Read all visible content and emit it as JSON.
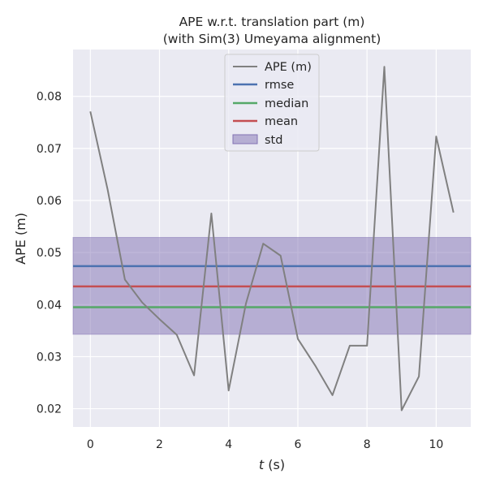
{
  "chart_data": {
    "type": "line",
    "title": "APE w.r.t. translation part (m)",
    "subtitle": "(with Sim(3) Umeyama alignment)",
    "xlabel_var": "t",
    "xlabel_unit": " (s)",
    "ylabel": "APE (m)",
    "xlim": [
      -0.5,
      11.0
    ],
    "ylim": [
      0.0165,
      0.089
    ],
    "xticks": [
      0,
      2,
      4,
      6,
      8,
      10
    ],
    "yticks": [
      0.02,
      0.03,
      0.04,
      0.05,
      0.06,
      0.07,
      0.08
    ],
    "grid": true,
    "legend_position": "top-center",
    "series": [
      {
        "name": "APE (m)",
        "color": "#808080",
        "x": [
          0,
          0.5,
          1.0,
          1.5,
          2.0,
          2.5,
          3.0,
          3.5,
          4.0,
          4.5,
          5.0,
          5.5,
          6.0,
          6.5,
          7.0,
          7.5,
          8.0,
          8.5,
          9.0,
          9.5,
          10.0,
          10.5
        ],
        "y": [
          0.0771,
          0.0621,
          0.0448,
          0.0404,
          0.0372,
          0.0342,
          0.0264,
          0.0575,
          0.0235,
          0.0402,
          0.0517,
          0.0494,
          0.0334,
          0.0283,
          0.0226,
          0.0321,
          0.0321,
          0.0857,
          0.0197,
          0.0262,
          0.0723,
          0.0577
        ]
      }
    ],
    "stats": {
      "rmse": 0.0474,
      "median": 0.0395,
      "mean": 0.0435,
      "std_band": [
        0.0343,
        0.0529
      ]
    },
    "legend": [
      "APE (m)",
      "rmse",
      "median",
      "mean",
      "std"
    ],
    "colors": {
      "background": "#eaeaf2",
      "grid": "#ffffff",
      "rmse": "#4c72b0",
      "median": "#55a868",
      "mean": "#c44e52",
      "std": "#8172b3"
    }
  }
}
